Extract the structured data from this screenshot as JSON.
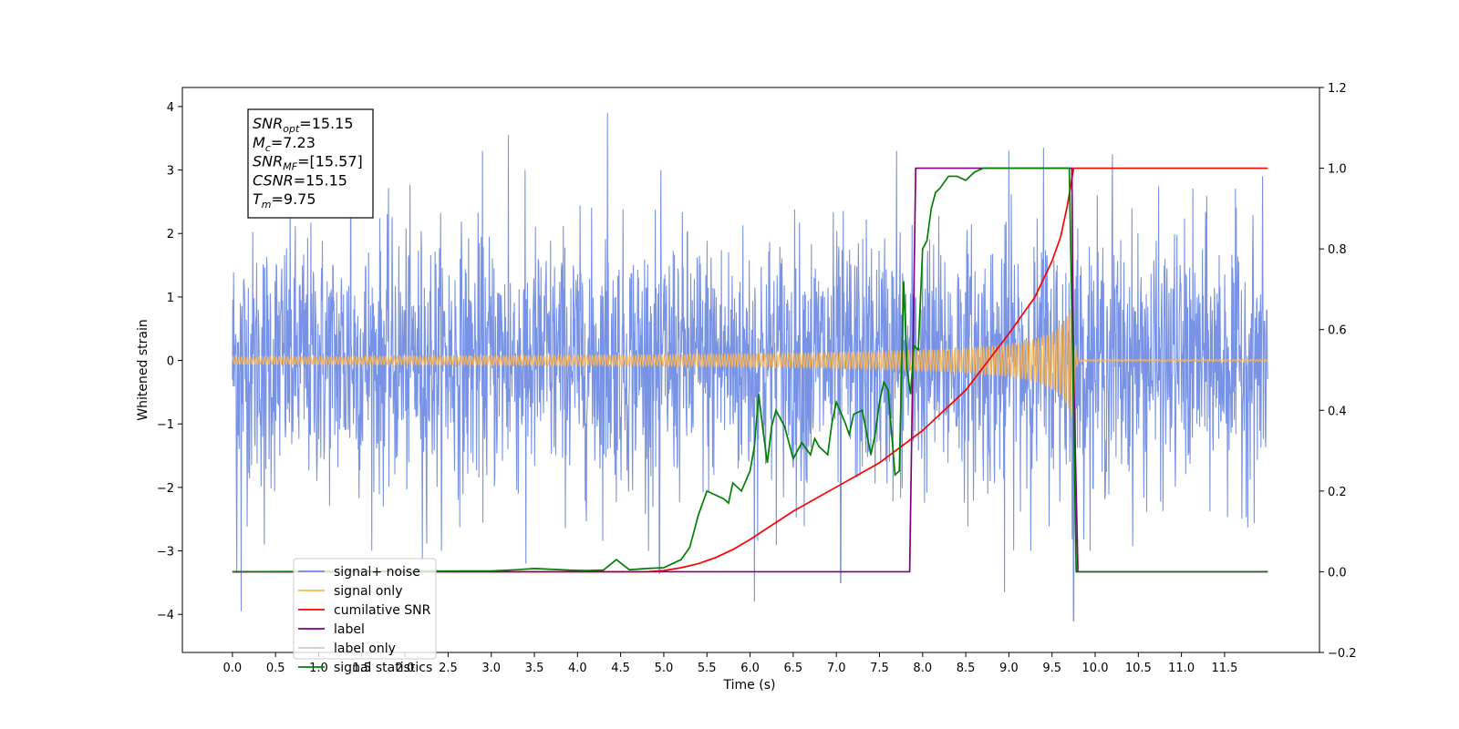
{
  "chart_data": {
    "type": "line",
    "title": "",
    "xlabel": "Time (s)",
    "ylabel_left": "Whitened strain",
    "ylabel_right": "",
    "xlim": [
      -0.58,
      12.6
    ],
    "ylim_left": [
      -4.6,
      4.3
    ],
    "ylim_right": [
      -0.2,
      1.2
    ],
    "x_ticks": [
      0.0,
      0.5,
      1.0,
      1.5,
      2.0,
      2.5,
      3.0,
      3.5,
      4.0,
      4.5,
      5.0,
      5.5,
      6.0,
      6.5,
      7.0,
      7.5,
      8.0,
      8.5,
      9.0,
      9.5,
      10.0,
      10.5,
      11.0,
      11.5
    ],
    "x_tick_labels": [
      "0.0",
      "0.5",
      "1.0",
      "1.5",
      "2.0",
      "2.5",
      "3.0",
      "3.5",
      "4.0",
      "4.5",
      "5.0",
      "5.5",
      "6.0",
      "6.5",
      "7.0",
      "7.5",
      "8.0",
      "8.5",
      "9.0",
      "9.5",
      "10.0",
      "10.5",
      "11.0",
      "11.5"
    ],
    "y_left_ticks": [
      -4,
      -3,
      -2,
      -1,
      0,
      1,
      2,
      3,
      4
    ],
    "y_left_tick_labels": [
      "−4",
      "−3",
      "−2",
      "−1",
      "0",
      "1",
      "2",
      "3",
      "4"
    ],
    "y_right_ticks": [
      -0.2,
      0.0,
      0.2,
      0.4,
      0.6,
      0.8,
      1.0,
      1.2
    ],
    "y_right_tick_labels": [
      "−0.2",
      "0.0",
      "0.2",
      "0.4",
      "0.6",
      "0.8",
      "1.0",
      "1.2"
    ],
    "grid": false,
    "legend_position": "bottom-left",
    "info_box": {
      "lines": [
        {
          "symbol": "SNR",
          "sub": "opt",
          "value": "=15.15"
        },
        {
          "symbol": "M",
          "sub": "c",
          "value": "=7.23"
        },
        {
          "symbol": "SNR",
          "sub": "MF",
          "value": "=[15.57]"
        },
        {
          "symbol": "CSNR",
          "sub": "",
          "value": "=15.15"
        },
        {
          "symbol": "T",
          "sub": "m",
          "value": "=9.75"
        }
      ]
    },
    "series": [
      {
        "name": "signal+ noise",
        "axis": "left",
        "color": "#6c8ae4",
        "kind": "noise",
        "x_range": [
          0.0,
          12.0
        ],
        "sigma": 1.05,
        "extremes": [
          {
            "x": 0.05,
            "y": -3.35
          },
          {
            "x": 0.1,
            "y": -3.95
          },
          {
            "x": 0.37,
            "y": -2.9
          },
          {
            "x": 1.37,
            "y": 3.45
          },
          {
            "x": 1.95,
            "y": 3.35
          },
          {
            "x": 2.2,
            "y": -3.15
          },
          {
            "x": 2.9,
            "y": 3.3
          },
          {
            "x": 3.2,
            "y": 3.55
          },
          {
            "x": 3.4,
            "y": -3.2
          },
          {
            "x": 4.35,
            "y": 3.9
          },
          {
            "x": 4.95,
            "y": -3.35
          },
          {
            "x": 6.05,
            "y": -3.8
          },
          {
            "x": 7.05,
            "y": -3.5
          },
          {
            "x": 7.7,
            "y": 3.3
          },
          {
            "x": 9.0,
            "y": 3.3
          },
          {
            "x": 8.95,
            "y": -3.65
          },
          {
            "x": 9.4,
            "y": 3.35
          },
          {
            "x": 9.75,
            "y": -4.1
          },
          {
            "x": 10.2,
            "y": 3.25
          }
        ]
      },
      {
        "name": "signal only",
        "axis": "left",
        "color": "#ffb74d",
        "kind": "chirp",
        "x_range": [
          0.0,
          12.0
        ],
        "merger_time": 9.75,
        "peak_amplitude": 1.05
      },
      {
        "name": "cumilative SNR",
        "axis": "right",
        "color": "#ff0000",
        "x": [
          0.0,
          4.8,
          5.0,
          5.2,
          5.4,
          5.6,
          5.8,
          6.0,
          6.5,
          7.0,
          7.5,
          8.0,
          8.5,
          9.0,
          9.3,
          9.5,
          9.6,
          9.68,
          9.75,
          10.0,
          12.0
        ],
        "y": [
          0.0,
          0.0,
          0.003,
          0.01,
          0.02,
          0.035,
          0.055,
          0.08,
          0.15,
          0.21,
          0.27,
          0.35,
          0.45,
          0.59,
          0.68,
          0.77,
          0.83,
          0.91,
          1.0,
          1.0,
          1.0
        ]
      },
      {
        "name": "label",
        "axis": "right",
        "color": "#800080",
        "x": [
          0.0,
          7.85,
          7.92,
          9.73,
          9.75,
          9.8,
          9.85,
          12.0
        ],
        "y": [
          0.0,
          0.0,
          1.0,
          1.0,
          0.5,
          0.0,
          0.0,
          0.0
        ]
      },
      {
        "name": "label only",
        "axis": "right",
        "color": "#cccccc",
        "hidden": true,
        "x": [],
        "y": []
      },
      {
        "name": "signal statistics",
        "axis": "right",
        "color": "#008000",
        "x": [
          0.0,
          3.0,
          3.3,
          3.5,
          3.7,
          3.9,
          4.1,
          4.3,
          4.45,
          4.6,
          4.8,
          5.0,
          5.1,
          5.2,
          5.3,
          5.4,
          5.5,
          5.6,
          5.7,
          5.75,
          5.8,
          5.9,
          6.0,
          6.05,
          6.1,
          6.15,
          6.2,
          6.25,
          6.3,
          6.4,
          6.5,
          6.55,
          6.6,
          6.7,
          6.75,
          6.8,
          6.9,
          6.95,
          7.0,
          7.1,
          7.15,
          7.2,
          7.3,
          7.4,
          7.45,
          7.5,
          7.55,
          7.6,
          7.68,
          7.73,
          7.78,
          7.82,
          7.86,
          7.9,
          7.95,
          8.0,
          8.05,
          8.1,
          8.15,
          8.2,
          8.3,
          8.4,
          8.5,
          8.6,
          8.7,
          8.8,
          9.0,
          9.2,
          9.5,
          9.7,
          9.75,
          9.78,
          12.0
        ],
        "y": [
          0.0,
          0.002,
          0.005,
          0.008,
          0.006,
          0.004,
          0.003,
          0.004,
          0.03,
          0.005,
          0.008,
          0.01,
          0.02,
          0.03,
          0.06,
          0.14,
          0.2,
          0.19,
          0.18,
          0.17,
          0.22,
          0.2,
          0.25,
          0.31,
          0.44,
          0.35,
          0.27,
          0.36,
          0.4,
          0.36,
          0.28,
          0.3,
          0.32,
          0.29,
          0.33,
          0.31,
          0.29,
          0.37,
          0.42,
          0.37,
          0.34,
          0.39,
          0.4,
          0.29,
          0.34,
          0.42,
          0.47,
          0.45,
          0.24,
          0.25,
          0.72,
          0.5,
          0.44,
          0.56,
          0.55,
          0.8,
          0.82,
          0.9,
          0.94,
          0.95,
          0.98,
          0.98,
          0.97,
          0.99,
          1.0,
          1.0,
          1.0,
          1.0,
          1.0,
          1.0,
          0.4,
          0.0,
          0.0
        ]
      }
    ],
    "legend": [
      {
        "label": "signal+ noise",
        "color": "#6c8ae4"
      },
      {
        "label": "signal only",
        "color": "#ffb74d"
      },
      {
        "label": "cumilative SNR",
        "color": "#ff0000"
      },
      {
        "label": "label",
        "color": "#800080"
      },
      {
        "label": "label only",
        "color": "#cccccc"
      },
      {
        "label": "signal statistics",
        "color": "#008000"
      }
    ]
  }
}
